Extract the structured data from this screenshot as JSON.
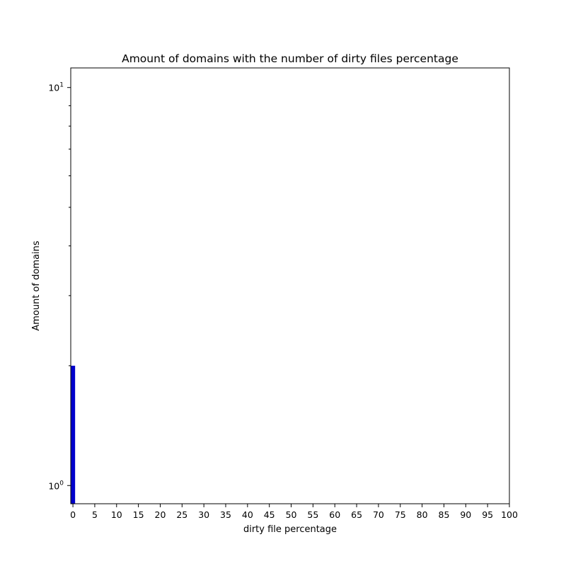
{
  "chart_data": {
    "type": "bar",
    "title": "Amount of domains with the number of dirty files percentage",
    "xlabel": "dirty file percentage",
    "ylabel": "Amount of domains",
    "x_scale": "linear",
    "y_scale": "log",
    "xlim": [
      -0.5,
      100
    ],
    "ylim": [
      0.9,
      11.2
    ],
    "x_ticks": [
      "0",
      "5",
      "10",
      "15",
      "20",
      "25",
      "30",
      "35",
      "40",
      "45",
      "50",
      "55",
      "60",
      "65",
      "70",
      "75",
      "80",
      "85",
      "90",
      "95",
      "100"
    ],
    "y_major_ticks": [
      {
        "value": 1,
        "base": "10",
        "exp": "0"
      },
      {
        "value": 10,
        "base": "10",
        "exp": "1"
      }
    ],
    "y_minor_ticks": [
      2,
      3,
      4,
      5,
      6,
      7,
      8,
      9
    ],
    "grid": false,
    "bar_color": "#0000cc",
    "bars": [
      {
        "x0": -0.5,
        "x1": 0.5,
        "value": 2
      }
    ]
  }
}
